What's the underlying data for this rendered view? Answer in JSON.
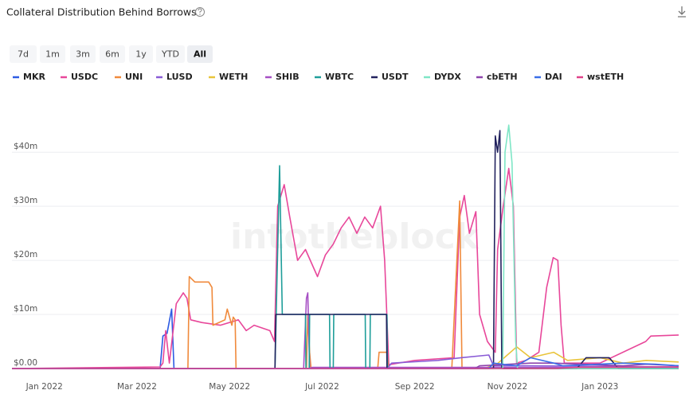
{
  "chart_data": {
    "type": "line",
    "title": "Collateral Distribution Behind Borrows",
    "watermark": "intotheblock",
    "ranges": [
      "7d",
      "1m",
      "3m",
      "6m",
      "1y",
      "YTD",
      "All"
    ],
    "selected_range": "All",
    "legend": "top",
    "grid": true,
    "xlim": [
      -0.7,
      13.7
    ],
    "xticks": [
      {
        "value": 0,
        "label": "Jan 2022"
      },
      {
        "value": 2,
        "label": "Mar 2022"
      },
      {
        "value": 4,
        "label": "May 2022"
      },
      {
        "value": 6,
        "label": "Jul 2022"
      },
      {
        "value": 8,
        "label": "Sep 2022"
      },
      {
        "value": 10,
        "label": "Nov 2022"
      },
      {
        "value": 12,
        "label": "Jan 2023"
      }
    ],
    "ylim": [
      0,
      49.3
    ],
    "yticks": [
      {
        "value": 0,
        "label": "$0.00"
      },
      {
        "value": 10,
        "label": "$10m"
      },
      {
        "value": 20,
        "label": "$20m"
      },
      {
        "value": 30,
        "label": "$30m"
      },
      {
        "value": 40,
        "label": "$40m"
      }
    ],
    "series": [
      {
        "name": "MKR",
        "color": "#2d5be3",
        "x": [
          -0.7,
          2.5,
          2.56,
          2.65,
          2.75,
          2.8,
          2.85,
          13.7
        ],
        "values": [
          0,
          0,
          6,
          6.5,
          11,
          0,
          0,
          0
        ]
      },
      {
        "name": "USDC",
        "color": "#e8479a",
        "x": [
          -0.7,
          2.5,
          2.56,
          2.62,
          2.7,
          2.85,
          3.0,
          3.08,
          3.16,
          3.4,
          3.8,
          4.19,
          4.36,
          4.53,
          4.7,
          4.87,
          4.97,
          5.04,
          5.18,
          5.3,
          5.47,
          5.64,
          5.9,
          6.07,
          6.24,
          6.41,
          6.58,
          6.75,
          6.92,
          7.09,
          7.26,
          7.35,
          7.44,
          8.0,
          8.85,
          8.97,
          9.07,
          9.18,
          9.32,
          9.4,
          9.57,
          9.74,
          9.79,
          9.91,
          10.03,
          10.13,
          10.2,
          10.4,
          10.68,
          10.85,
          10.99,
          11.09,
          11.16,
          11.23,
          12.0,
          12.99,
          13.1,
          13.7
        ],
        "values": [
          0,
          0.3,
          1,
          7,
          1,
          12,
          14,
          13,
          9,
          8.5,
          8,
          9,
          7,
          8,
          7.5,
          7,
          5,
          30,
          34,
          28,
          20,
          22,
          17,
          21,
          23,
          26,
          28,
          25,
          28,
          26,
          30,
          20,
          0.7,
          1.5,
          2,
          28,
          32,
          25,
          29,
          10,
          5,
          3,
          22,
          30,
          37,
          30,
          1,
          1.5,
          3,
          15,
          20.5,
          20,
          8,
          1,
          1,
          5,
          6,
          6.2
        ]
      },
      {
        "name": "UNI",
        "color": "#f08a3c",
        "x": [
          -0.7,
          3.1,
          3.13,
          3.25,
          3.55,
          3.62,
          3.64,
          3.9,
          3.95,
          4.05,
          4.08,
          4.12,
          4.14,
          5.66,
          5.69,
          5.73,
          5.76,
          7.2,
          7.23,
          7.4,
          7.43,
          8.8,
          8.97,
          9.02,
          13.7
        ],
        "values": [
          0,
          0,
          17,
          16,
          16,
          15,
          8,
          9,
          11,
          8,
          9.5,
          9,
          0,
          0,
          10,
          3,
          0,
          0,
          3,
          3,
          0,
          0,
          31,
          0,
          0
        ]
      },
      {
        "name": "LUSD",
        "color": "#8a5cd6",
        "x": [
          -0.7,
          7.4,
          7.5,
          8.5,
          9.0,
          9.6,
          9.7,
          10.5,
          13.7
        ],
        "values": [
          0,
          0,
          1,
          1.5,
          2,
          2.5,
          0.5,
          0.5,
          0.3
        ]
      },
      {
        "name": "WETH",
        "color": "#e9c43a",
        "x": [
          -0.7,
          9.5,
          9.8,
          10.2,
          10.5,
          11.0,
          11.3,
          12.0,
          12.5,
          13.0,
          13.7
        ],
        "values": [
          0,
          0,
          1,
          4,
          2,
          3,
          1.5,
          2,
          1,
          1.5,
          1.2
        ]
      },
      {
        "name": "SHIB",
        "color": "#a64fc4",
        "x": [
          -0.7,
          5.6,
          5.66,
          5.69,
          5.73,
          5.78,
          13.7
        ],
        "values": [
          0,
          0,
          13,
          14,
          0,
          0.2,
          0.2
        ]
      },
      {
        "name": "WBTC",
        "color": "#1f9e9a",
        "x": [
          -0.7,
          4.98,
          5.08,
          5.14,
          5.2,
          5.64,
          5.65,
          5.72,
          5.73,
          6.16,
          6.17,
          6.24,
          6.25,
          6.93,
          6.94,
          7.03,
          7.04,
          7.4,
          7.41,
          13.7
        ],
        "values": [
          0,
          0,
          37.5,
          10,
          10,
          10,
          0,
          0,
          10,
          10,
          0,
          0,
          10,
          10,
          0,
          0,
          10,
          10,
          0,
          0
        ]
      },
      {
        "name": "USDT",
        "color": "#22225e",
        "x": [
          -0.7,
          4.98,
          5.0,
          7.39,
          7.4,
          9.7,
          9.74,
          9.79,
          9.84,
          9.88,
          11.5,
          11.7,
          12.2,
          12.4,
          13.7
        ],
        "values": [
          0,
          0,
          10,
          10,
          0,
          0,
          43,
          40,
          44,
          0,
          0,
          2,
          2,
          0,
          0
        ]
      },
      {
        "name": "DYDX",
        "color": "#7fe6c6",
        "x": [
          -0.7,
          9.9,
          9.95,
          10.03,
          10.1,
          10.18,
          10.22,
          13.7
        ],
        "values": [
          0,
          0,
          40,
          45,
          38,
          5,
          0,
          0
        ]
      },
      {
        "name": "cbETH",
        "color": "#8e44ad",
        "x": [
          -0.7,
          9.3,
          9.4,
          10.5,
          11.0,
          12.5,
          13.0,
          13.7
        ],
        "values": [
          0,
          0,
          0.5,
          1,
          1,
          0.5,
          0.8,
          0.5
        ]
      },
      {
        "name": "DAI",
        "color": "#3a6ee8",
        "x": [
          -0.7,
          9.6,
          9.7,
          10.2,
          10.5,
          11.0,
          11.2,
          12.5,
          13.2,
          13.7
        ],
        "values": [
          0,
          0,
          1,
          0.5,
          2,
          1,
          0.5,
          1,
          0.8,
          0.5
        ]
      },
      {
        "name": "wstETH",
        "color": "#e0428a",
        "x": [
          -0.7,
          11,
          11.5,
          13.7
        ],
        "values": [
          0,
          0,
          0.2,
          0.3
        ]
      }
    ]
  }
}
